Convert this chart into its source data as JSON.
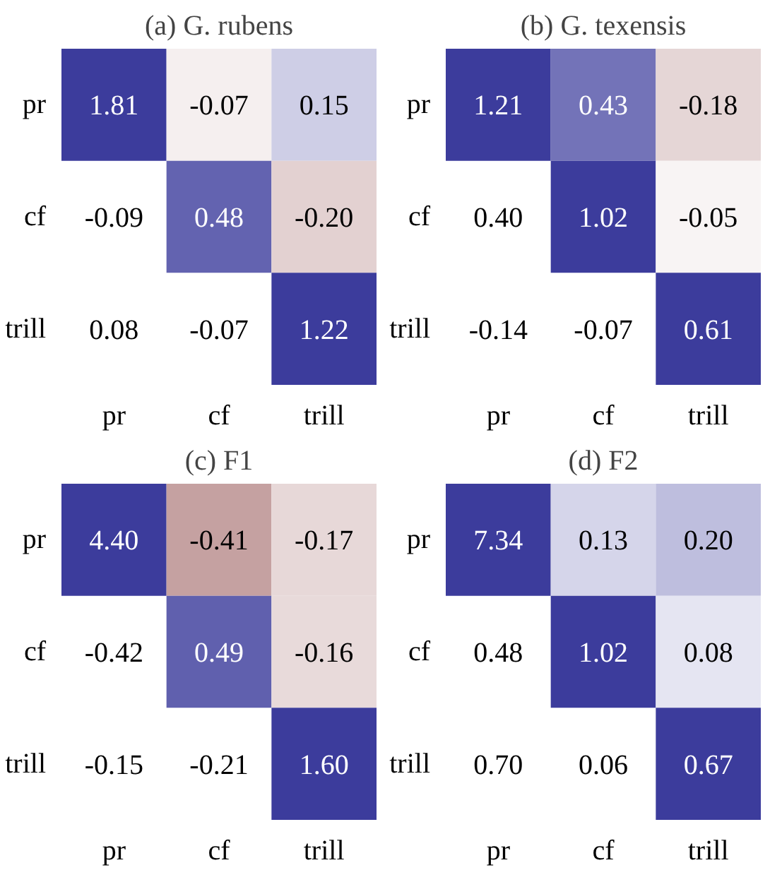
{
  "chart_data": [
    {
      "type": "heatmap",
      "title": "(a) G. rubens",
      "categories": [
        "pr",
        "cf",
        "trill"
      ],
      "y_categories": [
        "pr",
        "cf",
        "trill"
      ],
      "cells": [
        [
          1.81,
          -0.07,
          0.15
        ],
        [
          null,
          0.48,
          -0.2
        ],
        [
          null,
          null,
          1.22
        ]
      ],
      "cell_labels": [
        [
          "1.81",
          "-0.07",
          "0.15"
        ],
        [
          "-0.09",
          "0.48",
          "-0.20"
        ],
        [
          "0.08",
          "-0.07",
          "1.22"
        ]
      ]
    },
    {
      "type": "heatmap",
      "title": "(b) G. texensis",
      "categories": [
        "pr",
        "cf",
        "trill"
      ],
      "y_categories": [
        "pr",
        "cf",
        "trill"
      ],
      "cells": [
        [
          1.21,
          0.43,
          -0.18
        ],
        [
          null,
          1.02,
          -0.05
        ],
        [
          null,
          null,
          0.61
        ]
      ],
      "cell_labels": [
        [
          "1.21",
          "0.43",
          "-0.18"
        ],
        [
          "0.40",
          "1.02",
          "-0.05"
        ],
        [
          "-0.14",
          "-0.07",
          "0.61"
        ]
      ]
    },
    {
      "type": "heatmap",
      "title": "(c) F1",
      "categories": [
        "pr",
        "cf",
        "trill"
      ],
      "y_categories": [
        "pr",
        "cf",
        "trill"
      ],
      "cells": [
        [
          4.4,
          -0.41,
          -0.17
        ],
        [
          null,
          0.49,
          -0.16
        ],
        [
          null,
          null,
          1.6
        ]
      ],
      "cell_labels": [
        [
          "4.40",
          "-0.41",
          "-0.17"
        ],
        [
          "-0.42",
          "0.49",
          "-0.16"
        ],
        [
          "-0.15",
          "-0.21",
          "1.60"
        ]
      ]
    },
    {
      "type": "heatmap",
      "title": "(d) F2",
      "categories": [
        "pr",
        "cf",
        "trill"
      ],
      "y_categories": [
        "pr",
        "cf",
        "trill"
      ],
      "cells": [
        [
          7.34,
          0.13,
          0.2
        ],
        [
          null,
          1.02,
          0.08
        ],
        [
          null,
          null,
          0.67
        ]
      ],
      "cell_labels": [
        [
          "7.34",
          "0.13",
          "0.20"
        ],
        [
          "0.48",
          "1.02",
          "0.08"
        ],
        [
          "0.70",
          "0.06",
          "0.67"
        ]
      ]
    }
  ]
}
